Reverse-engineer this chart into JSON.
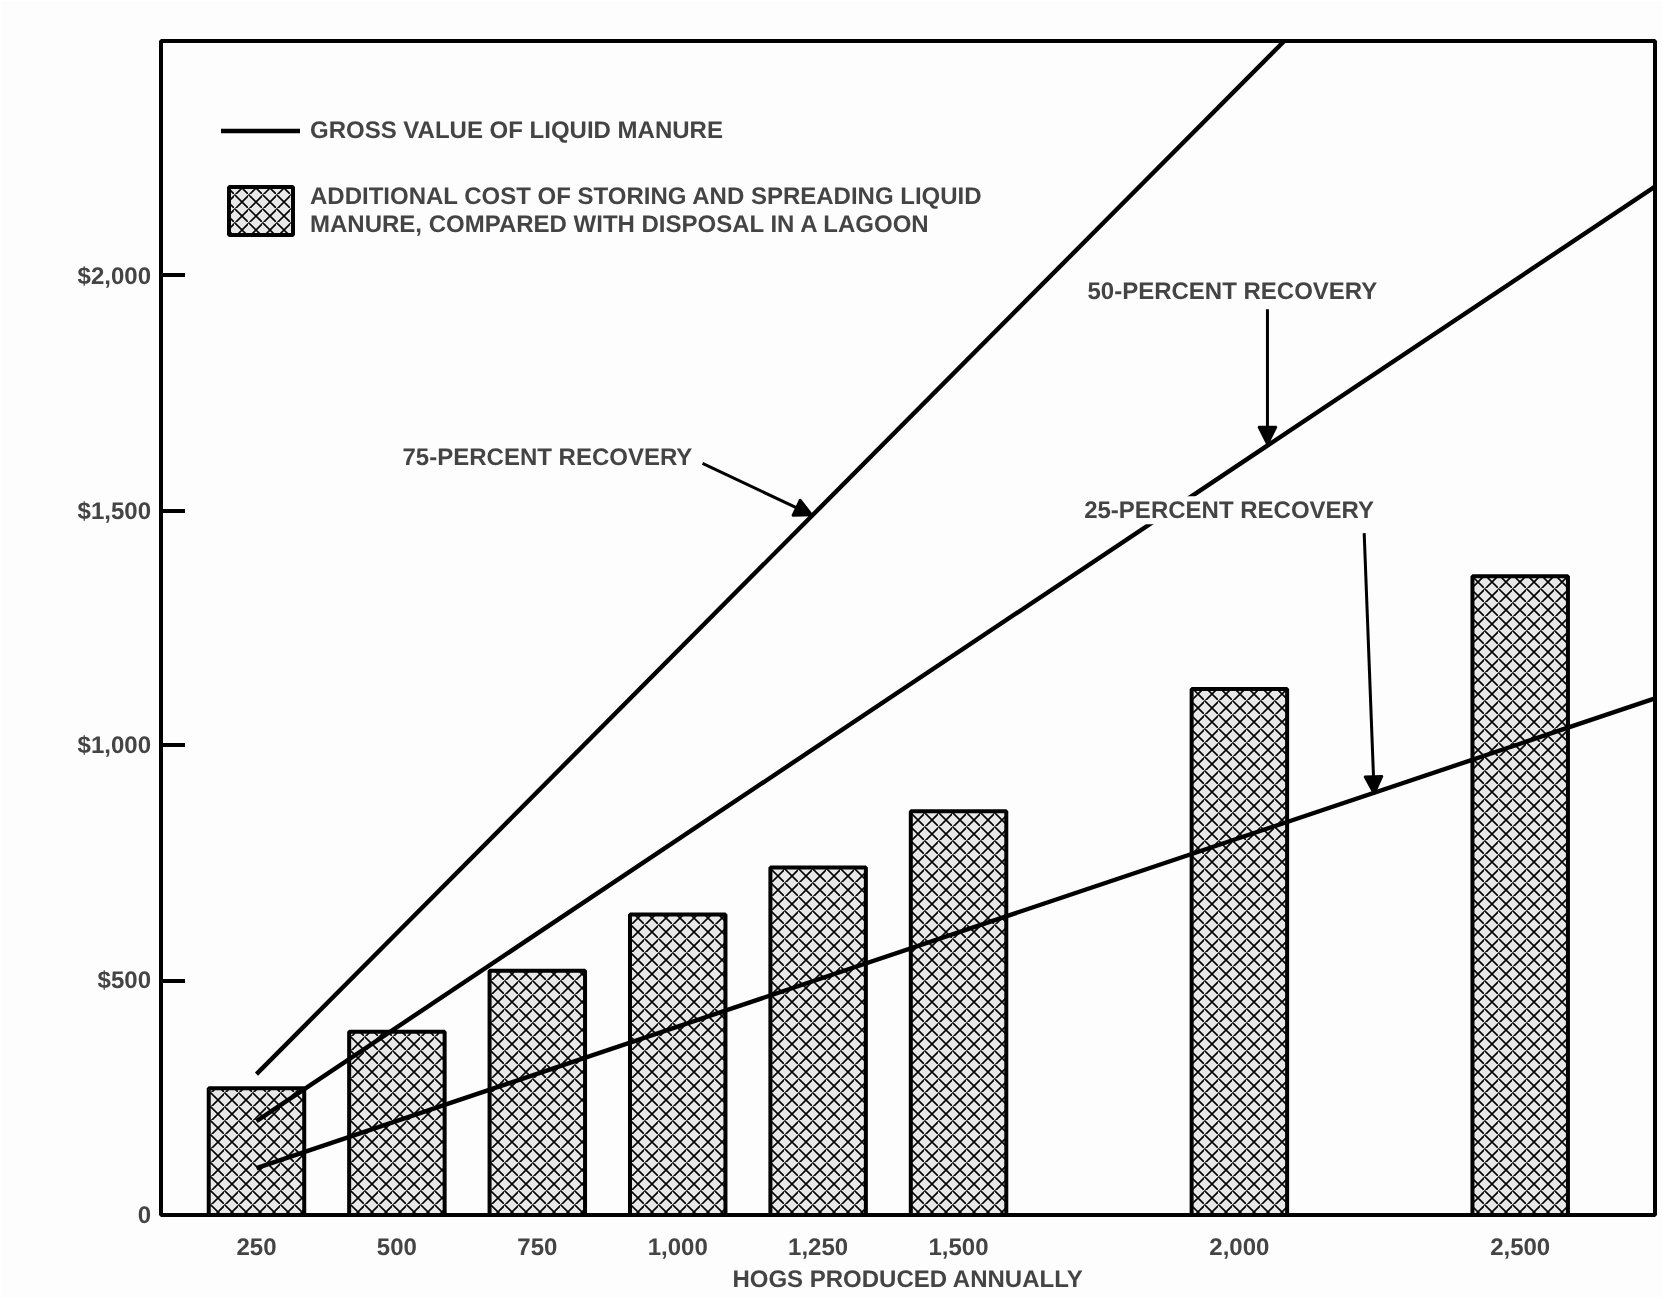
{
  "chart_data": {
    "type": "bar",
    "xlabel": "HOGS PRODUCED ANNUALLY",
    "x": [
      250,
      500,
      750,
      1000,
      1250,
      1500,
      2000,
      2500
    ],
    "series": [
      {
        "name": "ADDITIONAL COST OF STORING AND SPREADING LIQUID MANURE, COMPARED WITH DISPOSAL IN A LAGOON",
        "color": "#e8e8e8",
        "values": [
          270,
          390,
          520,
          640,
          740,
          860,
          1120,
          1360
        ]
      },
      {
        "type": "line",
        "name": "GROSS VALUE OF LIQUID MANURE",
        "color": "#000000",
        "x": [
          250,
          2080
        ],
        "values": [
          300,
          2500
        ]
      },
      {
        "type": "line",
        "color": "#000000",
        "x": [
          250,
          2740
        ],
        "values": [
          200,
          2190
        ]
      },
      {
        "type": "line",
        "color": "#000000",
        "x": [
          250,
          2740
        ],
        "values": [
          100,
          1100
        ]
      }
    ],
    "annotations": [
      {
        "text": "75-PERCENT RECOVERY",
        "x": 1240,
        "y": 1490
      },
      {
        "text": "50-PERCENT RECOVERY",
        "x": 2050,
        "y": 1640
      },
      {
        "text": "25-PERCENT RECOVERY",
        "x": 2240,
        "y": 896
      }
    ],
    "xlim": [
      80,
      2740
    ],
    "ylim": [
      0,
      2500
    ],
    "xticks": [
      250,
      500,
      750,
      {
        "value": 1000,
        "label": "1,000"
      },
      {
        "value": 1250,
        "label": "1,250"
      },
      {
        "value": 1500,
        "label": "1,500"
      },
      {
        "value": 2000,
        "label": "2,000"
      },
      {
        "value": 2500,
        "label": "2,500"
      }
    ],
    "yticks": [
      0,
      {
        "value": 500,
        "label": "$500"
      },
      {
        "value": 1000,
        "label": "$1,000"
      },
      {
        "value": 1500,
        "label": "$1,500"
      },
      {
        "value": 2000,
        "label": "$2,000"
      }
    ],
    "grid": false,
    "legend": "top left",
    "line_style": "solid"
  }
}
